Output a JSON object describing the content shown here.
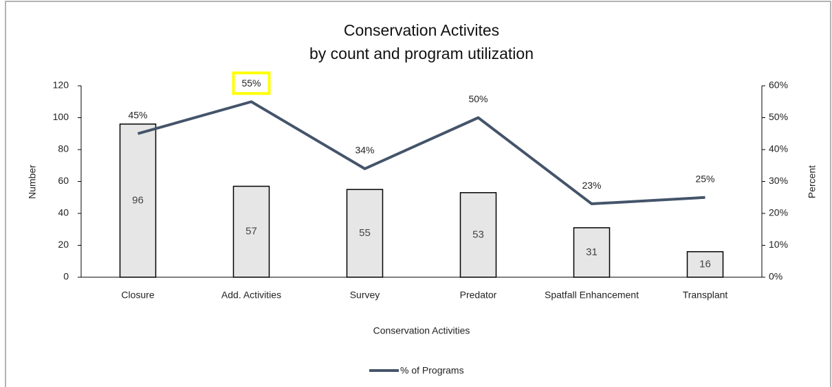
{
  "chart_data": {
    "type": "bar",
    "title": "Conservation Activites",
    "subtitle": "by count and program utilization",
    "x_label": "Conservation Activities",
    "y_label": "Number",
    "y2_label": "Percent",
    "categories": [
      "Closure",
      "Add. Activities",
      "Survey",
      "Predator",
      "Spatfall Enhancement",
      "Transplant"
    ],
    "series": [
      {
        "type": "bar",
        "color": "#e7e6e6",
        "values": [
          96,
          57,
          55,
          53,
          31,
          16
        ]
      },
      {
        "type": "line",
        "name": "% of Programs",
        "color": "#44546a",
        "axis": "y2",
        "values": [
          45,
          55,
          34,
          50,
          23,
          25
        ],
        "value_labels": [
          "45%",
          "55%",
          "34%",
          "50%",
          "23%",
          "25%"
        ]
      }
    ],
    "ylim": [
      0,
      120
    ],
    "yticks": [
      0,
      20,
      40,
      60,
      80,
      100,
      120
    ],
    "y2lim": [
      0,
      60
    ],
    "y2ticks": [
      {
        "value": 0,
        "label": "0%"
      },
      {
        "value": 10,
        "label": "10%"
      },
      {
        "value": 20,
        "label": "20%"
      },
      {
        "value": 30,
        "label": "30%"
      },
      {
        "value": 40,
        "label": "40%"
      },
      {
        "value": 50,
        "label": "50%"
      },
      {
        "value": 60,
        "label": "60%"
      }
    ],
    "legend": "bottom"
  }
}
